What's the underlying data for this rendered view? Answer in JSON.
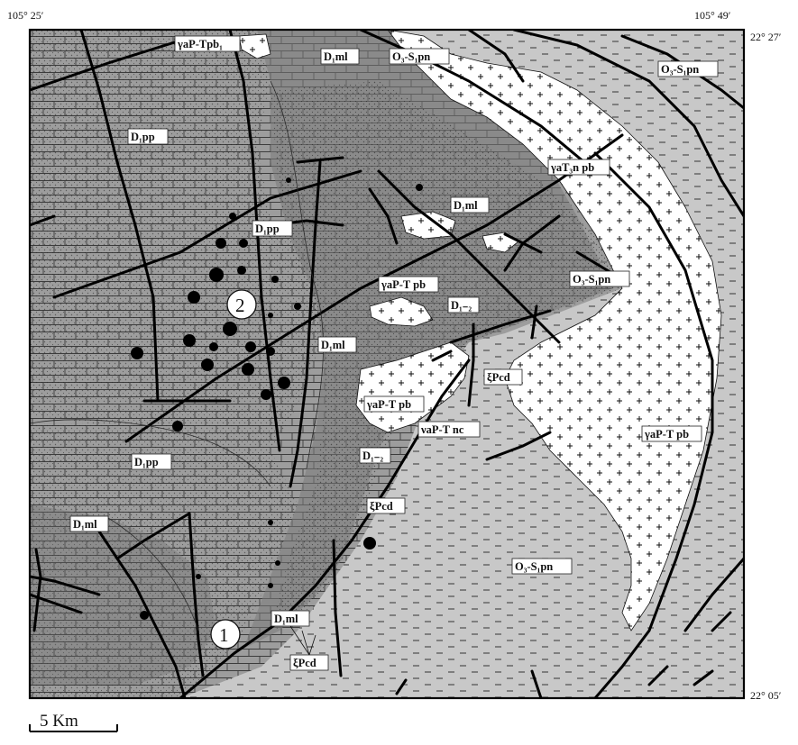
{
  "corners": {
    "top_left": "105° 25′",
    "top_right": "105° 49′",
    "right_top": "22° 27′",
    "right_bottom": "22° 05′"
  },
  "scale_bar": {
    "label": "5 Km"
  },
  "sites": [
    {
      "label": "1"
    },
    {
      "label": "2"
    }
  ],
  "units": [
    {
      "label": "γaP-Tpb₁"
    },
    {
      "label": "D₁ml"
    },
    {
      "label": "O₃-S₁pn"
    },
    {
      "label": "O₃-S₁pn"
    },
    {
      "label": "D₁pp"
    },
    {
      "label": "γaT₃n pb"
    },
    {
      "label": "D₁ml"
    },
    {
      "label": "D₁pp"
    },
    {
      "label": "γaP-T pb"
    },
    {
      "label": "O₃-S₁pn"
    },
    {
      "label": "D₁₋₂"
    },
    {
      "label": "D₁ml"
    },
    {
      "label": "ξPcd"
    },
    {
      "label": "γaP-T pb"
    },
    {
      "label": "νaP-T nc"
    },
    {
      "label": "D₁₋₂"
    },
    {
      "label": "γaP-T pb"
    },
    {
      "label": "D₁pp"
    },
    {
      "label": "ξPcd"
    },
    {
      "label": "D₁ml"
    },
    {
      "label": "O₃-S₁pn"
    },
    {
      "label": "D₁ml"
    },
    {
      "label": "ξPcd"
    }
  ]
}
